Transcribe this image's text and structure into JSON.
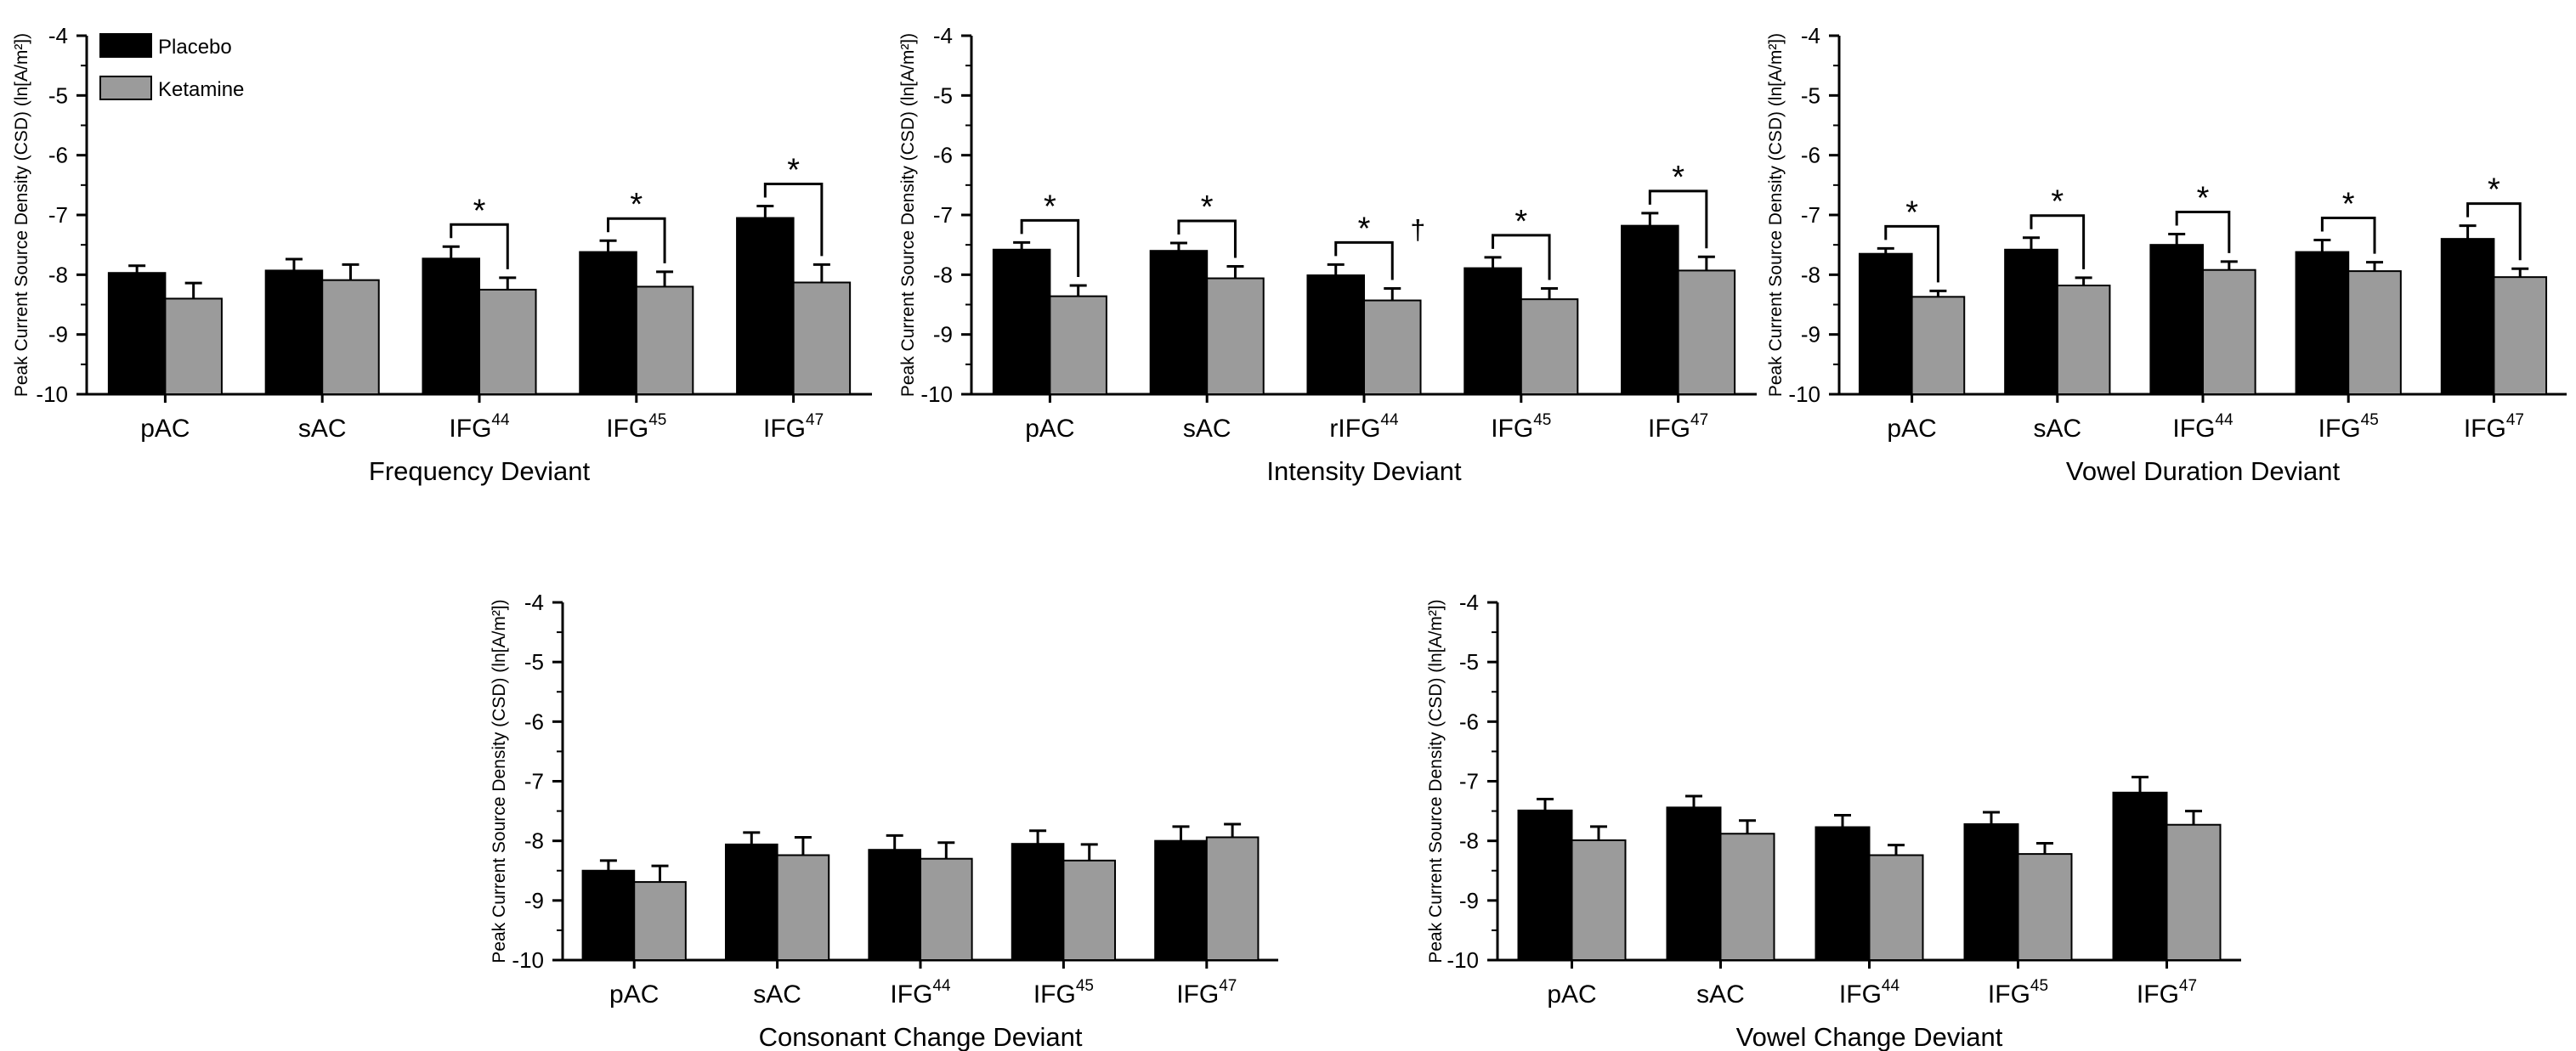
{
  "legend": [
    {
      "name": "Placebo",
      "color": "#000000"
    },
    {
      "name": "Ketamine",
      "color": "#9b9b9b"
    }
  ],
  "colors": {
    "placebo": "#000000",
    "ketamine": "#9b9b9b",
    "axis": "#000000"
  },
  "chart_data": [
    {
      "type": "bar",
      "title": "",
      "xlabel": "Frequency Deviant",
      "ylabel": "Peak Current Source Density (CSD) (ln[A/m²])",
      "ylim": [
        -10,
        -4
      ],
      "yticks": [
        -4,
        -5,
        -6,
        -7,
        -8,
        -9,
        -10
      ],
      "categories": [
        {
          "base": "pAC",
          "sup": ""
        },
        {
          "base": "sAC",
          "sup": ""
        },
        {
          "base": "IFG",
          "sup": "44"
        },
        {
          "base": "IFG",
          "sup": "45"
        },
        {
          "base": "IFG",
          "sup": "47"
        }
      ],
      "series": [
        {
          "name": "Placebo",
          "values": [
            -7.97,
            -7.93,
            -7.73,
            -7.62,
            -7.05
          ],
          "errors": [
            0.12,
            0.19,
            0.2,
            0.19,
            0.2
          ]
        },
        {
          "name": "Ketamine",
          "values": [
            -8.4,
            -8.09,
            -8.25,
            -8.2,
            -8.13
          ],
          "errors": [
            0.26,
            0.26,
            0.2,
            0.25,
            0.3
          ]
        }
      ],
      "annotations": [
        {
          "category": 2,
          "marker": "*",
          "dagger": ""
        },
        {
          "category": 3,
          "marker": "*",
          "dagger": ""
        },
        {
          "category": 4,
          "marker": "*",
          "dagger": ""
        }
      ]
    },
    {
      "type": "bar",
      "title": "",
      "xlabel": "Intensity Deviant",
      "ylabel": "Peak Current Source Density (CSD) (ln[A/m²])",
      "ylim": [
        -10,
        -4
      ],
      "yticks": [
        -4,
        -5,
        -6,
        -7,
        -8,
        -9,
        -10
      ],
      "categories": [
        {
          "base": "pAC",
          "sup": ""
        },
        {
          "base": "sAC",
          "sup": ""
        },
        {
          "base": "rIFG",
          "sup": "44"
        },
        {
          "base": "IFG",
          "sup": "45"
        },
        {
          "base": "IFG",
          "sup": "47"
        }
      ],
      "series": [
        {
          "name": "Placebo",
          "values": [
            -7.58,
            -7.6,
            -8.01,
            -7.89,
            -7.18
          ],
          "errors": [
            0.12,
            0.13,
            0.18,
            0.18,
            0.21
          ]
        },
        {
          "name": "Ketamine",
          "values": [
            -8.36,
            -8.06,
            -8.43,
            -8.41,
            -7.93
          ],
          "errors": [
            0.18,
            0.2,
            0.2,
            0.18,
            0.23
          ]
        }
      ],
      "annotations": [
        {
          "category": 0,
          "marker": "*",
          "dagger": ""
        },
        {
          "category": 1,
          "marker": "*",
          "dagger": ""
        },
        {
          "category": 2,
          "marker": "*",
          "dagger": "†"
        },
        {
          "category": 3,
          "marker": "*",
          "dagger": ""
        },
        {
          "category": 4,
          "marker": "*",
          "dagger": ""
        }
      ]
    },
    {
      "type": "bar",
      "title": "",
      "xlabel": "Vowel Duration Deviant",
      "ylabel": "Peak Current Source Density (CSD) (ln[A/m²])",
      "ylim": [
        -10,
        -4
      ],
      "yticks": [
        -4,
        -5,
        -6,
        -7,
        -8,
        -9,
        -10
      ],
      "categories": [
        {
          "base": "pAC",
          "sup": ""
        },
        {
          "base": "sAC",
          "sup": ""
        },
        {
          "base": "IFG",
          "sup": "44"
        },
        {
          "base": "IFG",
          "sup": "45"
        },
        {
          "base": "IFG",
          "sup": "47"
        }
      ],
      "series": [
        {
          "name": "Placebo",
          "values": [
            -7.65,
            -7.58,
            -7.5,
            -7.62,
            -7.4
          ],
          "errors": [
            0.09,
            0.2,
            0.18,
            0.2,
            0.22
          ]
        },
        {
          "name": "Ketamine",
          "values": [
            -8.37,
            -8.18,
            -7.92,
            -7.94,
            -8.04
          ],
          "errors": [
            0.1,
            0.13,
            0.14,
            0.15,
            0.14
          ]
        }
      ],
      "annotations": [
        {
          "category": 0,
          "marker": "*",
          "dagger": ""
        },
        {
          "category": 1,
          "marker": "*",
          "dagger": ""
        },
        {
          "category": 2,
          "marker": "*",
          "dagger": ""
        },
        {
          "category": 3,
          "marker": "*",
          "dagger": ""
        },
        {
          "category": 4,
          "marker": "*",
          "dagger": ""
        }
      ]
    },
    {
      "type": "bar",
      "title": "",
      "xlabel": "Consonant Change Deviant",
      "ylabel": "Peak Current Source Density (CSD) (ln[A/m²])",
      "ylim": [
        -10,
        -4
      ],
      "yticks": [
        -4,
        -5,
        -6,
        -7,
        -8,
        -9,
        -10
      ],
      "categories": [
        {
          "base": "pAC",
          "sup": ""
        },
        {
          "base": "sAC",
          "sup": ""
        },
        {
          "base": "IFG",
          "sup": "44"
        },
        {
          "base": "IFG",
          "sup": "45"
        },
        {
          "base": "IFG",
          "sup": "47"
        }
      ],
      "series": [
        {
          "name": "Placebo",
          "values": [
            -8.5,
            -8.06,
            -8.15,
            -8.05,
            -8.0
          ],
          "errors": [
            0.17,
            0.2,
            0.24,
            0.22,
            0.24
          ]
        },
        {
          "name": "Ketamine",
          "values": [
            -8.69,
            -8.24,
            -8.3,
            -8.33,
            -7.94
          ],
          "errors": [
            0.27,
            0.3,
            0.27,
            0.27,
            0.22
          ]
        }
      ],
      "annotations": []
    },
    {
      "type": "bar",
      "title": "",
      "xlabel": "Vowel Change Deviant",
      "ylabel": "Peak Current Source Density (CSD) (ln[A/m²])",
      "ylim": [
        -10,
        -4
      ],
      "yticks": [
        -4,
        -5,
        -6,
        -7,
        -8,
        -9,
        -10
      ],
      "categories": [
        {
          "base": "pAC",
          "sup": ""
        },
        {
          "base": "sAC",
          "sup": ""
        },
        {
          "base": "IFG",
          "sup": "44"
        },
        {
          "base": "IFG",
          "sup": "45"
        },
        {
          "base": "IFG",
          "sup": "47"
        }
      ],
      "series": [
        {
          "name": "Placebo",
          "values": [
            -7.49,
            -7.44,
            -7.77,
            -7.72,
            -7.19
          ],
          "errors": [
            0.19,
            0.19,
            0.2,
            0.2,
            0.26
          ]
        },
        {
          "name": "Ketamine",
          "values": [
            -7.99,
            -7.88,
            -8.24,
            -8.22,
            -7.73
          ],
          "errors": [
            0.23,
            0.22,
            0.17,
            0.18,
            0.23
          ]
        }
      ],
      "annotations": []
    }
  ]
}
